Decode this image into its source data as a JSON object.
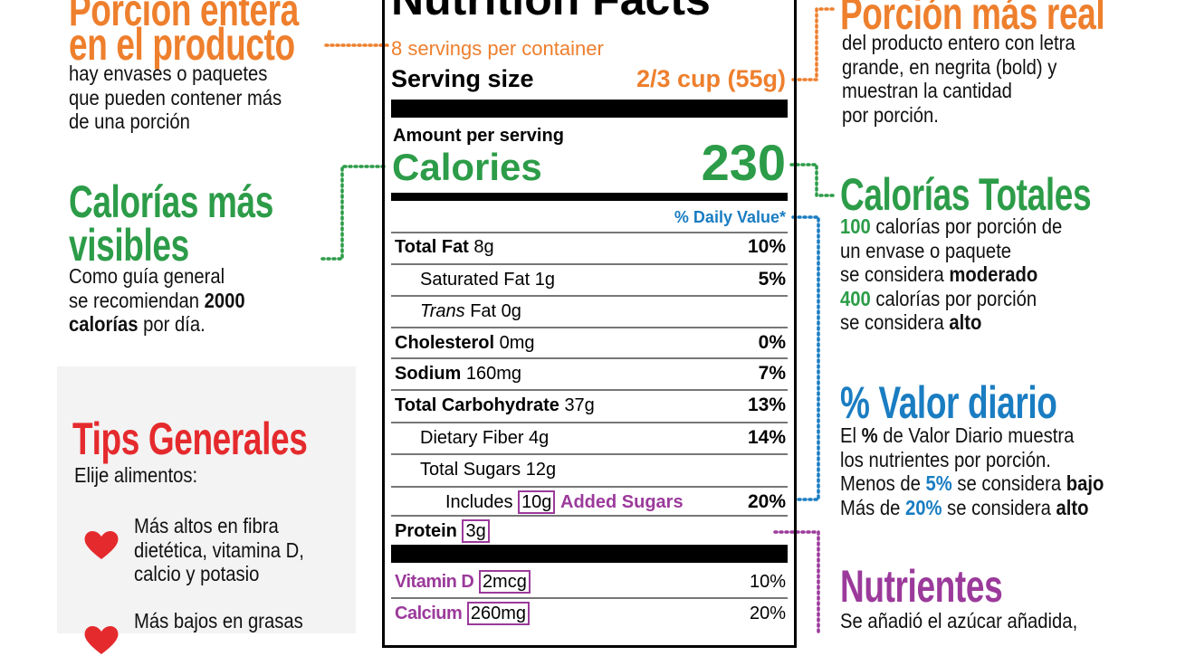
{
  "left": {
    "serving": {
      "title": [
        "Porción entera",
        "en el producto"
      ],
      "lines": [
        [
          "hay envases o paquetes"
        ],
        [
          "que pueden contener más"
        ],
        [
          "de una porción"
        ]
      ]
    },
    "calories": {
      "title": [
        "Calorías más",
        "visibles"
      ],
      "lines": [
        [
          "Como guía general"
        ],
        [
          "se recomiendan ",
          {
            "bold": "2000"
          }
        ],
        [
          {
            "bold": "calorías"
          },
          " por día."
        ]
      ]
    },
    "tips": {
      "title": "Tips Generales",
      "subtitle": "Elije alimentos:",
      "items": [
        [
          "Más altos en fibra",
          "dietética, vitamina D,",
          "calcio y potasio"
        ],
        [
          "Más bajos en grasas"
        ]
      ]
    }
  },
  "label": {
    "title": "Nutrition Facts",
    "servings": "8 servings per container",
    "serving_size": "Serving size",
    "serving_amount": "2/3 cup (55g)",
    "amount_per_serving": "Amount per serving",
    "calories_label": "Calories",
    "calories": "230",
    "daily_value": "% Daily Value*",
    "rows": [
      {
        "name": "Total Fat",
        "amount": "8g",
        "dv": "10%"
      },
      {
        "name": "Saturated Fat",
        "amount": "1g",
        "dv": "5%"
      },
      {
        "italic": "Trans",
        "name": "Fat",
        "amount": "0g"
      },
      {
        "name": "Cholesterol",
        "amount": "0mg",
        "dv": "0%"
      },
      {
        "name": "Sodium",
        "amount": "160mg",
        "dv": "7%"
      },
      {
        "name": "Total Carbohydrate",
        "amount": "37g",
        "dv": "13%"
      },
      {
        "name": "Dietary Fiber",
        "amount": "4g",
        "dv": "14%"
      },
      {
        "name": "Total Sugars",
        "amount": "12g"
      },
      {
        "name": "Includes",
        "amount": "10g",
        "suffix": "Added Sugars",
        "dv": "20%"
      },
      {
        "name": "Protein",
        "amount": "3g"
      }
    ],
    "vitamins": [
      {
        "name": "Vitamin D",
        "amount": "2mcg",
        "dv": "10%"
      },
      {
        "name": "Calcium",
        "amount": "260mg",
        "dv": "20%"
      }
    ]
  },
  "right": {
    "serving": {
      "title": "Porción más real",
      "lines": [
        [
          "del producto entero con letra"
        ],
        [
          "grande, en negrita (bold) y"
        ],
        [
          "muestran la cantidad"
        ],
        [
          "por porción."
        ]
      ]
    },
    "calories": {
      "title": "Calorías Totales",
      "lines": [
        [
          {
            "accent": "100"
          },
          " calorías por porción de"
        ],
        [
          "un envase o paquete"
        ],
        [
          "se considera ",
          {
            "bold": "moderado"
          }
        ],
        [
          {
            "accent": "400"
          },
          " calorías por porción"
        ],
        [
          "se considera ",
          {
            "bold": "alto"
          }
        ]
      ]
    },
    "daily": {
      "title": "% Valor diario",
      "lines": [
        [
          "El ",
          {
            "bold": "%"
          },
          " de Valor Diario muestra"
        ],
        [
          "los nutrientes por porción."
        ],
        [
          "Menos de ",
          {
            "accent": "5%"
          },
          " se considera ",
          {
            "bold": "bajo"
          }
        ],
        [
          "Más de ",
          {
            "accent": "20%"
          },
          " se considera ",
          {
            "bold": "alto"
          }
        ]
      ]
    },
    "nutrients": {
      "title": "Nutrientes",
      "lines": [
        [
          "Se añadió el azúcar añadida,"
        ]
      ]
    }
  }
}
